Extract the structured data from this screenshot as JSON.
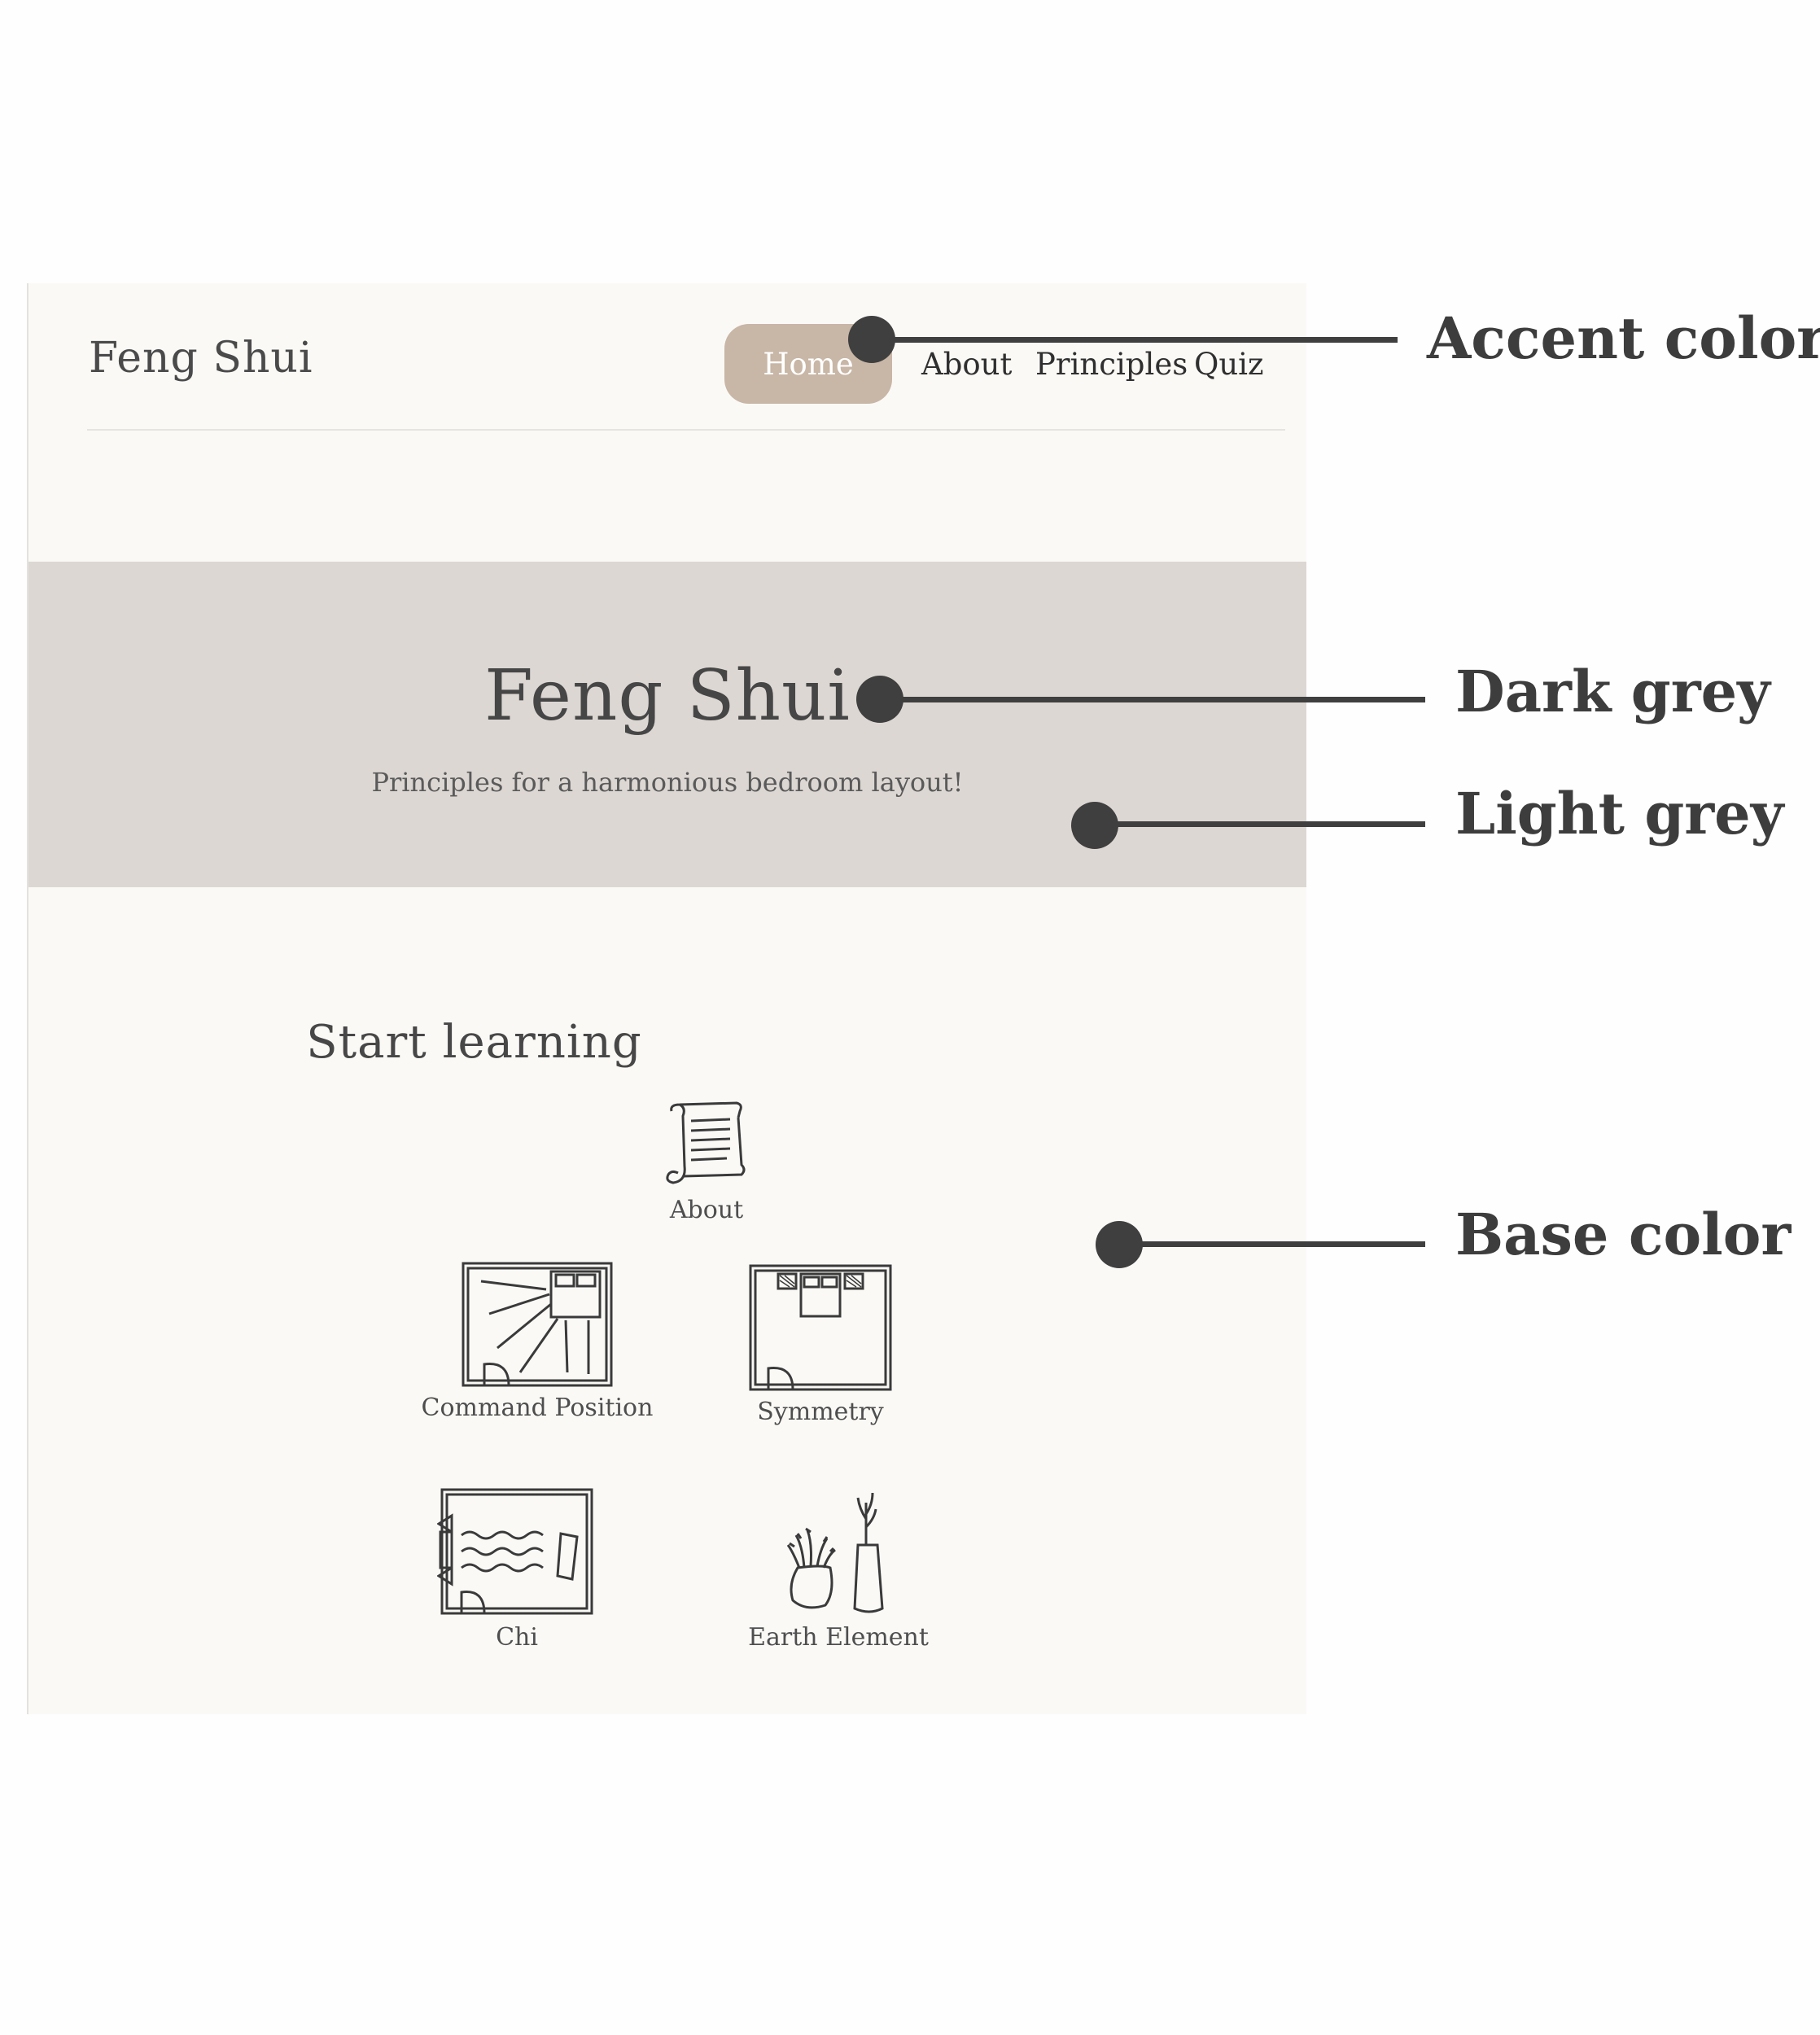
{
  "site": {
    "nav": {
      "logo": "Feng Shui",
      "links": [
        "Home",
        "About",
        "Principles",
        "Quiz"
      ]
    },
    "hero": {
      "title": "Feng Shui",
      "subtitle": "Principles for a harmonious bedroom layout!"
    },
    "learn": {
      "title": "Start learning",
      "cards": [
        {
          "label": "About",
          "icon": "scroll-icon"
        },
        {
          "label": "Command Position",
          "icon": "command-position-floorplan-icon"
        },
        {
          "label": "Symmetry",
          "icon": "symmetry-floorplan-icon"
        },
        {
          "label": "Chi",
          "icon": "chi-floorplan-icon"
        },
        {
          "label": "Earth Element",
          "icon": "vases-plants-icon"
        }
      ]
    }
  },
  "annotations": [
    "Accent color",
    "Dark grey",
    "Light grey",
    "Base color"
  ],
  "colors": {
    "accent": "#c8b6a6",
    "dark_grey": "#464646",
    "light_grey": "#dcd7d3",
    "base": "#faf9f6"
  }
}
